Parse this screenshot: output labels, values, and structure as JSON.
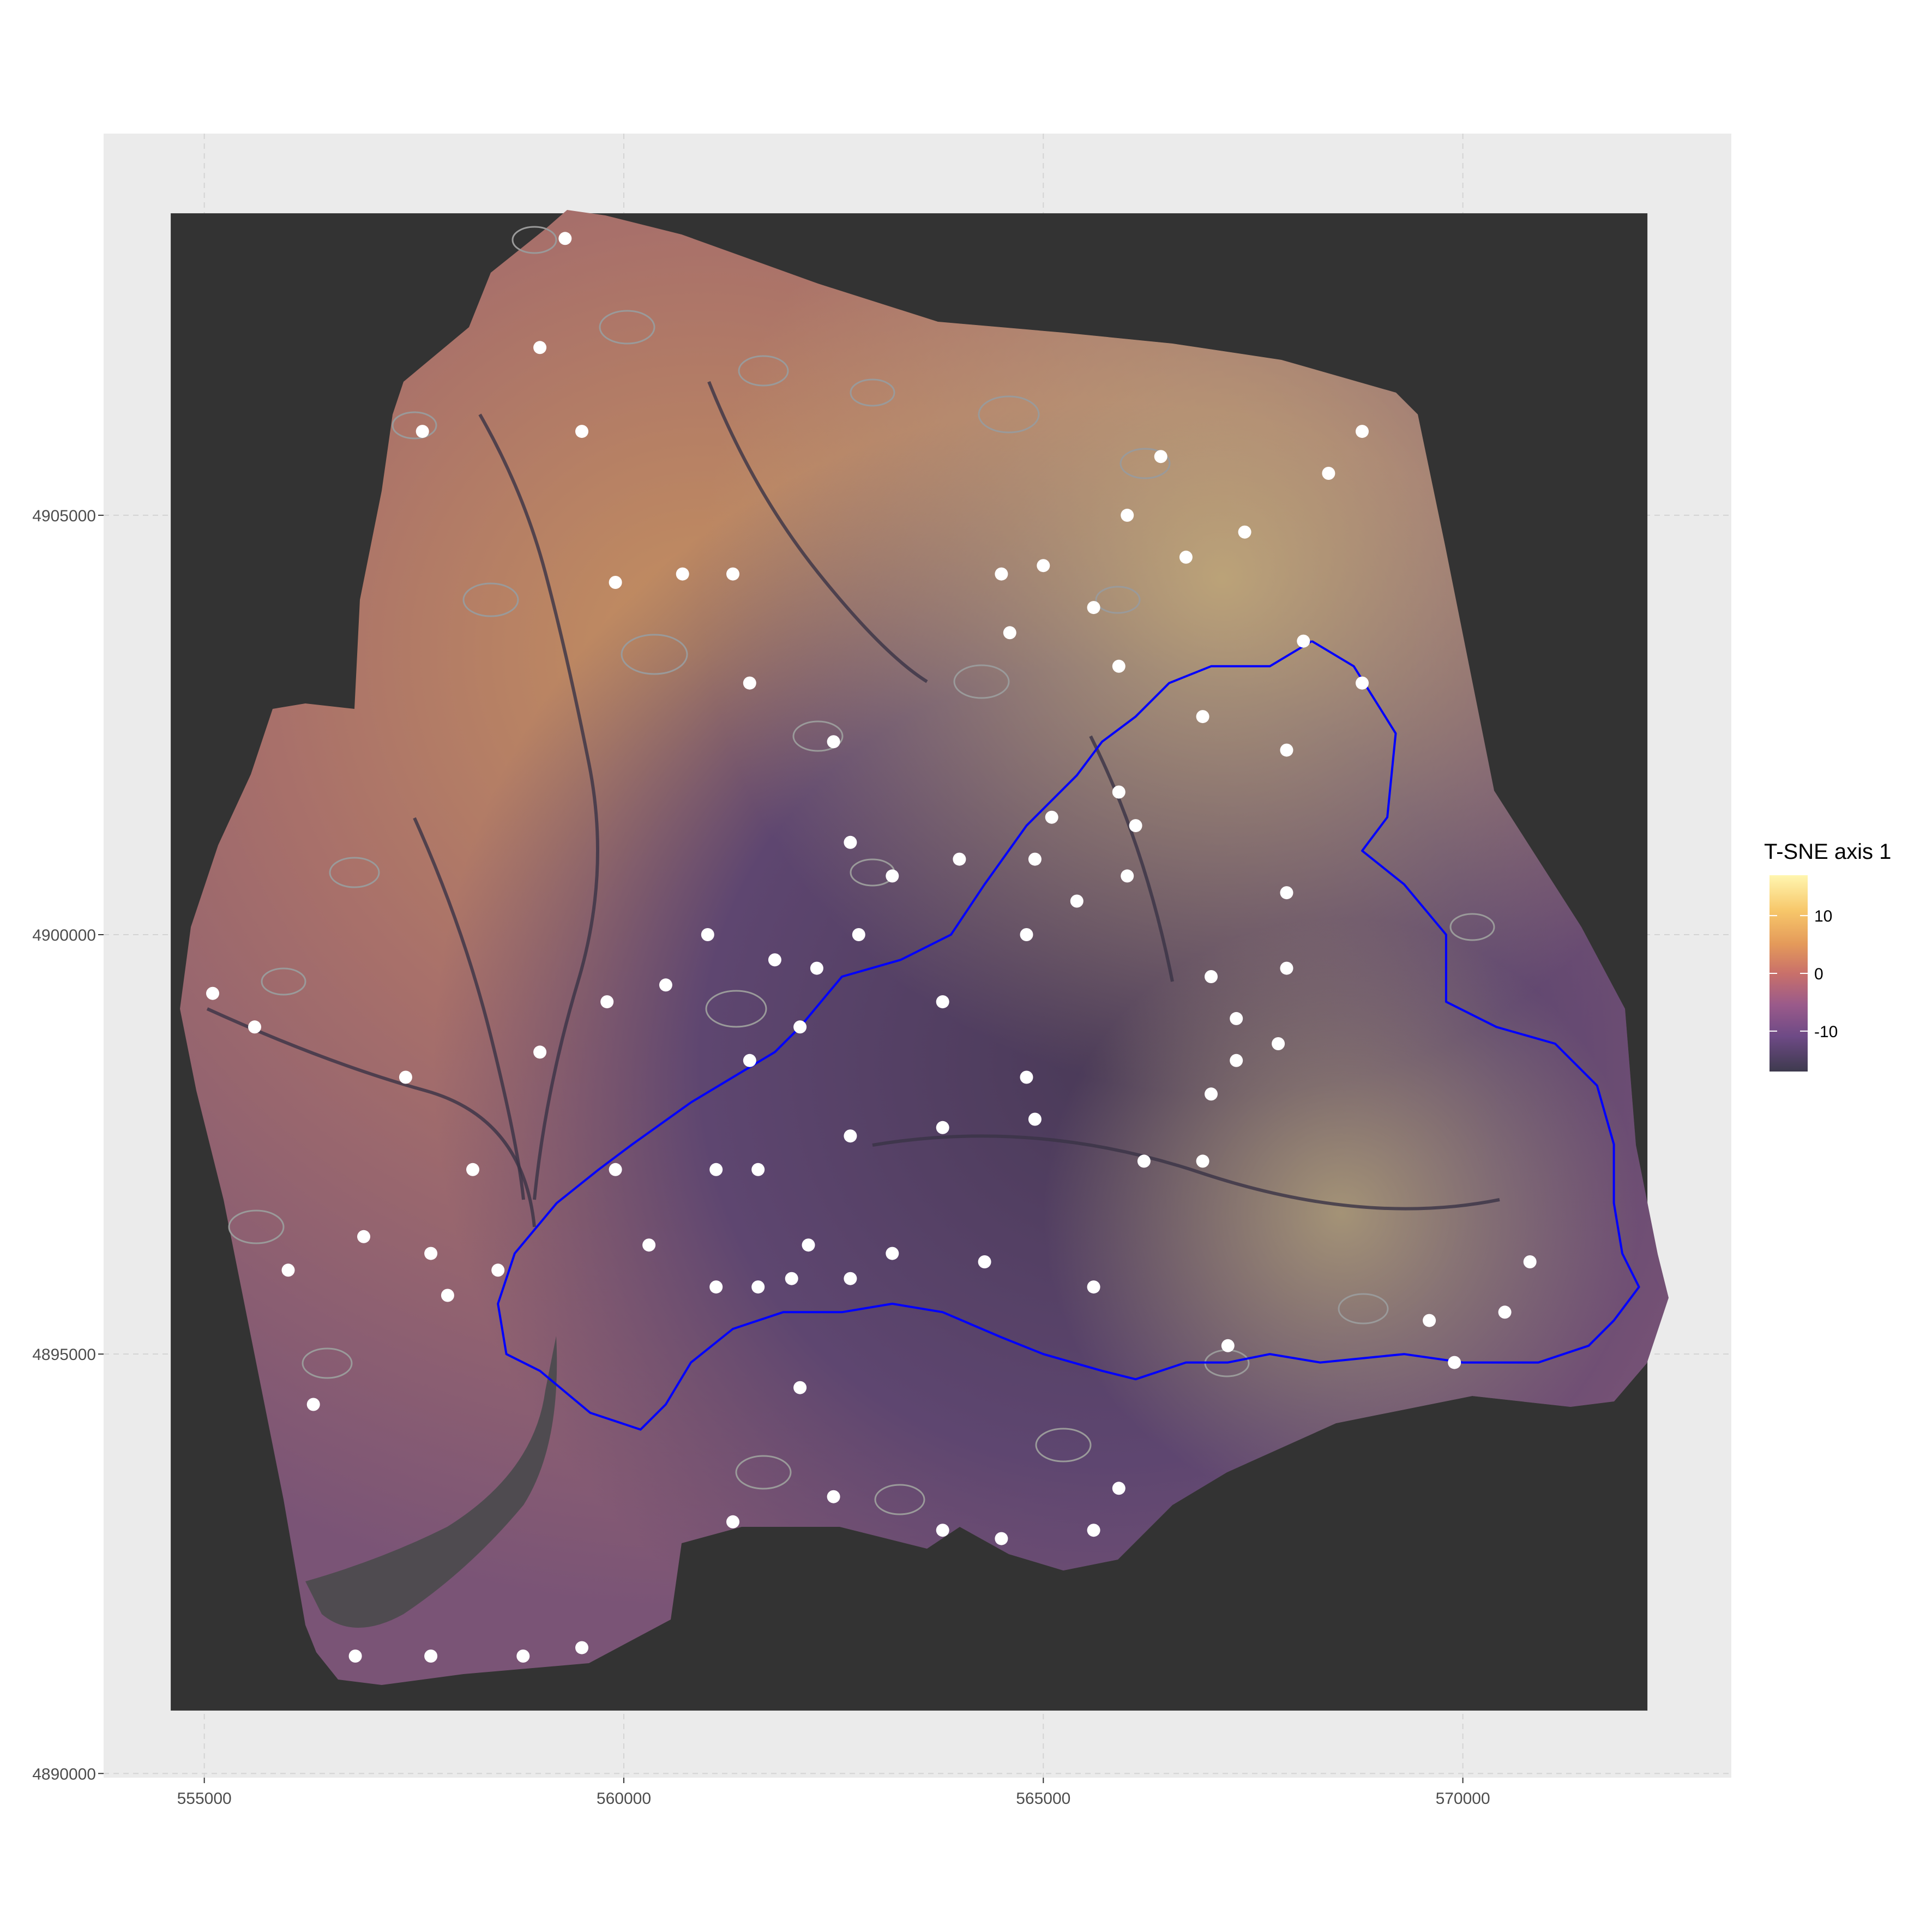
{
  "chart_data": {
    "type": "map",
    "x_axis": {
      "ticks": [
        555000,
        560000,
        565000,
        570000
      ],
      "tick_labels": [
        "555000",
        "560000",
        "565000",
        "570000"
      ],
      "range": [
        553800,
        573200
      ]
    },
    "y_axis": {
      "ticks": [
        4890000,
        4895000,
        4900000,
        4905000
      ],
      "tick_labels": [
        "4890000",
        "4895000",
        "4900000",
        "4905000"
      ],
      "range": [
        4889950,
        4909550
      ]
    },
    "raster_extent": {
      "x": [
        554600,
        572200
      ],
      "y": [
        4890750,
        4908600
      ]
    },
    "legend": {
      "title": "T-SNE axis 1",
      "ticks": [
        10,
        0,
        -10
      ],
      "tick_labels": [
        "10",
        "0",
        "-10"
      ],
      "range": [
        -17,
        17
      ],
      "colors": [
        "#fff6b0",
        "#f7c76a",
        "#e49a5a",
        "#c9706a",
        "#9a5a8a",
        "#6e4a86",
        "#3e3a4e"
      ]
    },
    "grid": true,
    "colors": {
      "panel_background": "#ebebeb",
      "grid_line": "#d4d4d4",
      "raster_nodata": "#333333",
      "point": "#ffffff",
      "boundary_line": "#0000ff",
      "polygon_outline": "#9a9a9a"
    },
    "points": [
      [
        559300,
        4908300
      ],
      [
        559000,
        4907000
      ],
      [
        557600,
        4906000
      ],
      [
        559500,
        4906000
      ],
      [
        568800,
        4906000
      ],
      [
        568400,
        4905500
      ],
      [
        566400,
        4905700
      ],
      [
        566000,
        4905000
      ],
      [
        567400,
        4904800
      ],
      [
        559900,
        4904200
      ],
      [
        560700,
        4904300
      ],
      [
        561300,
        4904300
      ],
      [
        564500,
        4904300
      ],
      [
        565000,
        4904400
      ],
      [
        566700,
        4904500
      ],
      [
        565600,
        4903900
      ],
      [
        564600,
        4903600
      ],
      [
        565900,
        4903200
      ],
      [
        568100,
        4903500
      ],
      [
        568800,
        4903000
      ],
      [
        561500,
        4903000
      ],
      [
        566900,
        4902600
      ],
      [
        562500,
        4902300
      ],
      [
        567900,
        4902200
      ],
      [
        565900,
        4901700
      ],
      [
        565100,
        4901400
      ],
      [
        566100,
        4901300
      ],
      [
        562700,
        4901100
      ],
      [
        564000,
        4900900
      ],
      [
        564900,
        4900900
      ],
      [
        563200,
        4900700
      ],
      [
        565400,
        4900400
      ],
      [
        566000,
        4900700
      ],
      [
        567900,
        4900500
      ],
      [
        561000,
        4900000
      ],
      [
        562800,
        4900000
      ],
      [
        564800,
        4900000
      ],
      [
        561800,
        4899700
      ],
      [
        562300,
        4899600
      ],
      [
        560500,
        4899400
      ],
      [
        567000,
        4899500
      ],
      [
        567900,
        4899600
      ],
      [
        555100,
        4899300
      ],
      [
        559800,
        4899200
      ],
      [
        563800,
        4899200
      ],
      [
        555600,
        4898900
      ],
      [
        562100,
        4898900
      ],
      [
        567300,
        4899000
      ],
      [
        559000,
        4898600
      ],
      [
        561500,
        4898500
      ],
      [
        567800,
        4898700
      ],
      [
        567300,
        4898500
      ],
      [
        557400,
        4898300
      ],
      [
        564800,
        4898300
      ],
      [
        570800,
        4896100
      ],
      [
        567000,
        4898100
      ],
      [
        564900,
        4897800
      ],
      [
        562700,
        4897600
      ],
      [
        563800,
        4897700
      ],
      [
        558200,
        4897200
      ],
      [
        559900,
        4897200
      ],
      [
        561100,
        4897200
      ],
      [
        561600,
        4897200
      ],
      [
        566200,
        4897300
      ],
      [
        566900,
        4897300
      ],
      [
        556900,
        4896400
      ],
      [
        560300,
        4896300
      ],
      [
        557700,
        4896200
      ],
      [
        562200,
        4896300
      ],
      [
        563200,
        4896200
      ],
      [
        564300,
        4896100
      ],
      [
        556000,
        4896000
      ],
      [
        558500,
        4896000
      ],
      [
        562000,
        4895900
      ],
      [
        561100,
        4895800
      ],
      [
        561600,
        4895800
      ],
      [
        562700,
        4895900
      ],
      [
        565600,
        4895800
      ],
      [
        557900,
        4895700
      ],
      [
        570500,
        4895500
      ],
      [
        569600,
        4895400
      ],
      [
        567200,
        4895100
      ],
      [
        569900,
        4894900
      ],
      [
        562100,
        4894600
      ],
      [
        556300,
        4894400
      ],
      [
        565900,
        4893400
      ],
      [
        562500,
        4893300
      ],
      [
        561300,
        4893000
      ],
      [
        563800,
        4892900
      ],
      [
        565600,
        4892900
      ],
      [
        564500,
        4892800
      ],
      [
        556800,
        4891400
      ],
      [
        557700,
        4891400
      ],
      [
        558800,
        4891400
      ],
      [
        559500,
        4891500
      ]
    ],
    "study_area_boundary": [
      [
        568200,
        4903500
      ],
      [
        568700,
        4903200
      ],
      [
        569200,
        4902400
      ],
      [
        569100,
        4901400
      ],
      [
        568800,
        4901000
      ],
      [
        569300,
        4900600
      ],
      [
        569800,
        4900000
      ],
      [
        569800,
        4899200
      ],
      [
        570400,
        4898900
      ],
      [
        571100,
        4898700
      ],
      [
        571600,
        4898200
      ],
      [
        571800,
        4897500
      ],
      [
        571800,
        4896800
      ],
      [
        571900,
        4896200
      ],
      [
        572100,
        4895800
      ],
      [
        571800,
        4895400
      ],
      [
        571500,
        4895100
      ],
      [
        570900,
        4894900
      ],
      [
        570000,
        4894900
      ],
      [
        569300,
        4895000
      ],
      [
        568300,
        4894900
      ],
      [
        567700,
        4895000
      ],
      [
        567200,
        4894900
      ],
      [
        566700,
        4894900
      ],
      [
        566100,
        4894700
      ],
      [
        565700,
        4894800
      ],
      [
        565000,
        4895000
      ],
      [
        564500,
        4895200
      ],
      [
        563800,
        4895500
      ],
      [
        563200,
        4895600
      ],
      [
        562600,
        4895500
      ],
      [
        561900,
        4895500
      ],
      [
        561300,
        4895300
      ],
      [
        560800,
        4894900
      ],
      [
        560500,
        4894400
      ],
      [
        560200,
        4894100
      ],
      [
        559600,
        4894300
      ],
      [
        559000,
        4894800
      ],
      [
        558600,
        4895000
      ],
      [
        558500,
        4895600
      ],
      [
        558700,
        4896200
      ],
      [
        559200,
        4896800
      ],
      [
        559700,
        4897200
      ],
      [
        560100,
        4897500
      ],
      [
        560800,
        4898000
      ],
      [
        561300,
        4898300
      ],
      [
        561800,
        4898600
      ],
      [
        562100,
        4898900
      ],
      [
        562600,
        4899500
      ],
      [
        563300,
        4899700
      ],
      [
        563900,
        4900000
      ],
      [
        564300,
        4900600
      ],
      [
        564800,
        4901300
      ],
      [
        565400,
        4901900
      ],
      [
        565700,
        4902300
      ],
      [
        566100,
        4902600
      ],
      [
        566500,
        4903000
      ],
      [
        567000,
        4903200
      ],
      [
        567700,
        4903200
      ],
      [
        568200,
        4903500
      ]
    ]
  }
}
